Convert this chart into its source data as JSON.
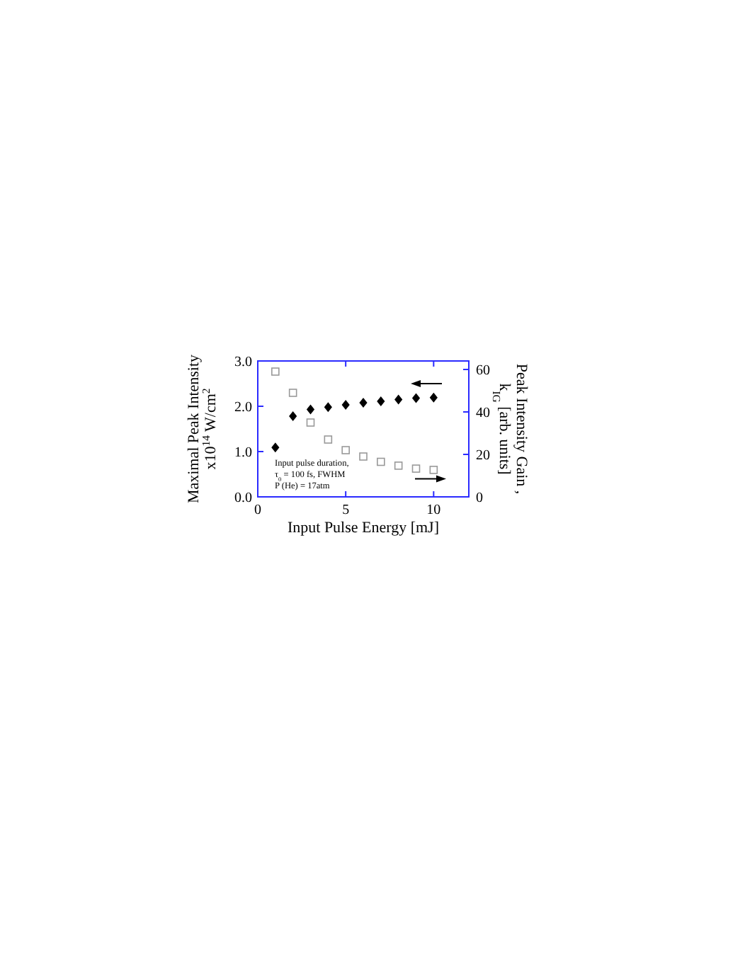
{
  "chart_data": {
    "type": "scatter",
    "xlabel": "Input Pulse Energy [mJ]",
    "ylabel": "Maximal Peak Intensity\nx10$^{14}$ W/cm$^{2}$",
    "y2label": "Peak Intensity Gain ,\nk$_{IG}$ [arb. units]",
    "x": [
      1,
      2,
      3,
      4,
      5,
      6,
      7,
      8,
      9,
      10
    ],
    "series": [
      {
        "color": "#000000",
        "marker": "diamond",
        "values": [
          1.09,
          1.78,
          1.93,
          1.98,
          2.03,
          2.08,
          2.11,
          2.15,
          2.18,
          2.19
        ]
      },
      {
        "color": "#999999",
        "marker": "square",
        "axis": "y2",
        "values": [
          59,
          49,
          35,
          27,
          22,
          19,
          16.5,
          14.7,
          13.3,
          12.7
        ]
      }
    ],
    "xlim": [
      0,
      12
    ],
    "xticks": [
      0,
      5,
      10
    ],
    "ylim": [
      0,
      3
    ],
    "yticks": [
      {
        "value": 0,
        "label": "0.0"
      },
      {
        "value": 1,
        "label": "1.0"
      },
      {
        "value": 2,
        "label": "2.0"
      },
      {
        "value": 3,
        "label": "3.0"
      }
    ],
    "y2lim": [
      0,
      64
    ],
    "y2ticks": [
      0,
      20,
      40,
      60
    ],
    "annotations": [
      "Input pulse duration,",
      "τ$_{0}$ = 100 fs, FWHM",
      "P (He) = 17atm"
    ],
    "grid": false
  }
}
